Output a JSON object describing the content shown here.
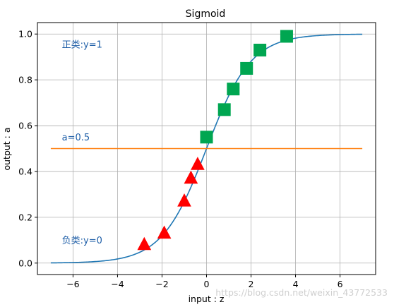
{
  "chart_data": {
    "type": "line",
    "title": "Sigmoid",
    "xlabel": "input : z",
    "ylabel": "output : a",
    "xlim": [
      -7.6,
      7.6
    ],
    "ylim": [
      -0.05,
      1.05
    ],
    "grid": true,
    "xticks": [
      -6,
      -4,
      -2,
      0,
      2,
      4,
      6
    ],
    "xtick_labels": [
      "−6",
      "−4",
      "−2",
      "0",
      "2",
      "4",
      "6"
    ],
    "yticks": [
      0.0,
      0.2,
      0.4,
      0.6,
      0.8,
      1.0
    ],
    "ytick_labels": [
      "0.0",
      "0.2",
      "0.4",
      "0.6",
      "0.8",
      "1.0"
    ],
    "curve": {
      "x_range": [
        -7,
        7
      ],
      "color": "#1f77b4"
    },
    "threshold": {
      "y": 0.5,
      "x_range": [
        -7,
        7
      ],
      "color": "#ff7f0e"
    },
    "negative_points": {
      "marker": "triangle",
      "color": "#ff0000",
      "x": [
        -2.8,
        -1.9,
        -1.0,
        -0.7,
        -0.4
      ],
      "y": [
        0.08,
        0.13,
        0.27,
        0.37,
        0.43
      ]
    },
    "positive_points": {
      "marker": "square",
      "color": "#00a651",
      "x": [
        0.0,
        0.8,
        1.2,
        1.8,
        2.4,
        3.6
      ],
      "y": [
        0.55,
        0.67,
        0.76,
        0.85,
        0.93,
        0.99
      ]
    },
    "annotations": [
      {
        "id": "positive-class",
        "text": "正类:y=1",
        "x": -6.5,
        "y": 0.94,
        "color": "#1f5fa8"
      },
      {
        "id": "threshold",
        "text": "a=0.5",
        "x": -6.5,
        "y": 0.535,
        "color": "#1f5fa8"
      },
      {
        "id": "negative-class",
        "text": "负类:y=0",
        "x": -6.5,
        "y": 0.085,
        "color": "#1f5fa8"
      }
    ]
  },
  "watermark": "https://blog.csdn.net/weixin_43772533"
}
